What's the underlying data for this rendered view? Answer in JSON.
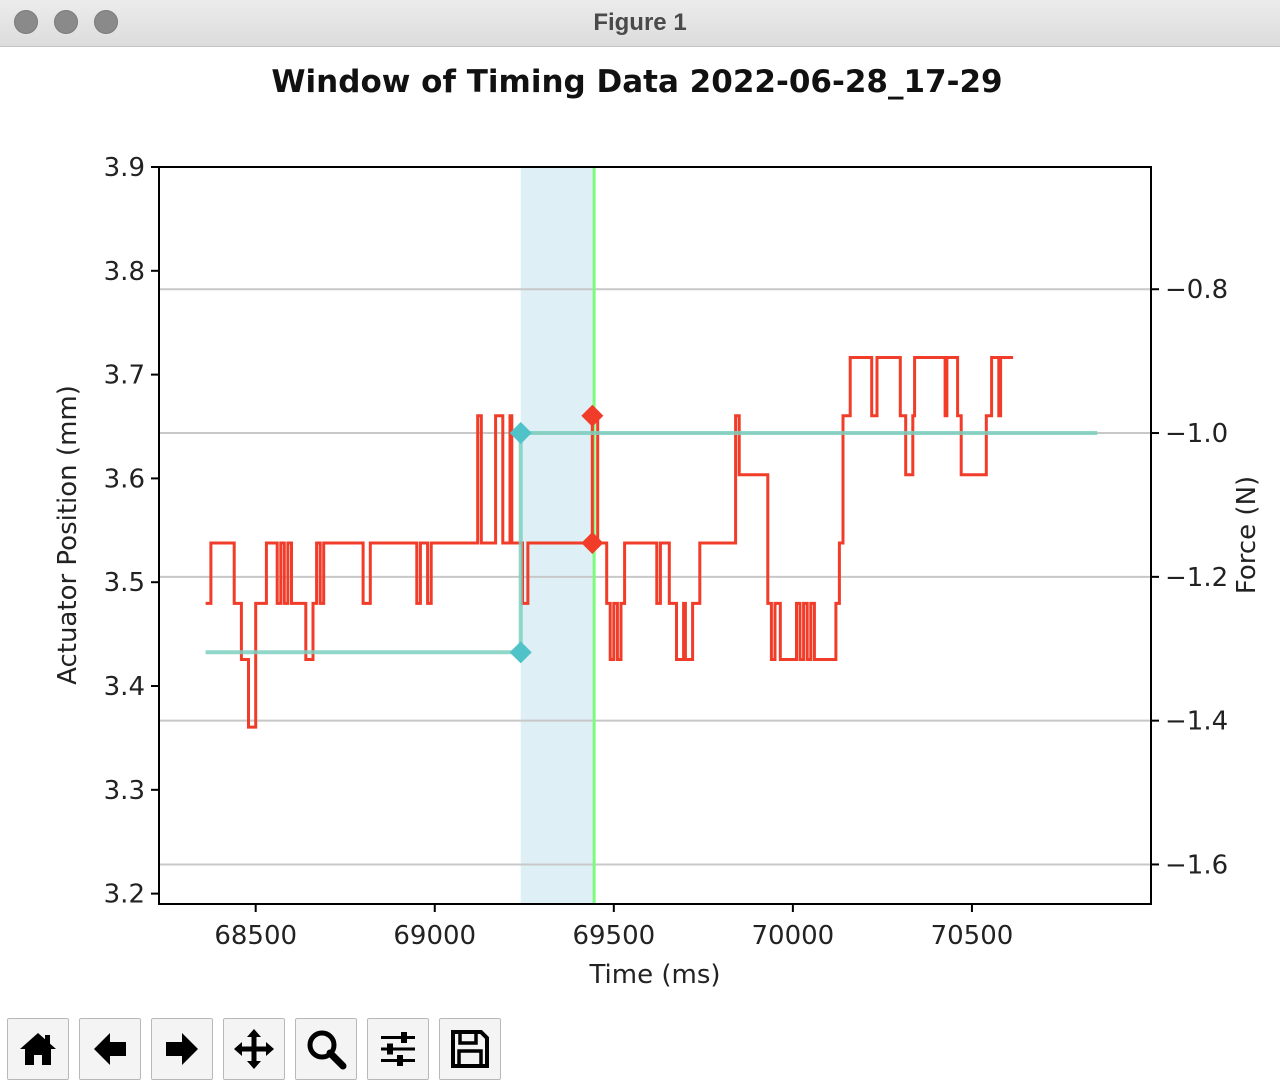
{
  "window": {
    "title": "Figure 1"
  },
  "toolbar": {
    "buttons": [
      {
        "name": "home-button",
        "icon": "home-icon"
      },
      {
        "name": "back-button",
        "icon": "arrow-left-icon"
      },
      {
        "name": "forward-button",
        "icon": "arrow-right-icon"
      },
      {
        "name": "pan-button",
        "icon": "move-icon"
      },
      {
        "name": "zoom-button",
        "icon": "magnifier-icon"
      },
      {
        "name": "configure-subplots-button",
        "icon": "sliders-icon"
      },
      {
        "name": "save-button",
        "icon": "floppy-disk-icon"
      }
    ]
  },
  "chart_data": {
    "type": "line",
    "title": "Window of Timing Data 2022-06-28_17-29",
    "xlabel": "Time (ms)",
    "ylabel": "Actuator Position (mm)",
    "y2label": "Force (N)",
    "xlim": [
      68230,
      71000
    ],
    "ylim": [
      3.19,
      3.9
    ],
    "y2lim": [
      -1.655,
      -0.63
    ],
    "xticks": [
      68500,
      69000,
      69500,
      70000,
      70500
    ],
    "xtick_labels": [
      "68500",
      "69000",
      "69500",
      "70000",
      "70500"
    ],
    "yticks": [
      3.2,
      3.3,
      3.4,
      3.5,
      3.6,
      3.7,
      3.8,
      3.9
    ],
    "ytick_labels": [
      "3.2",
      "3.3",
      "3.4",
      "3.5",
      "3.6",
      "3.7",
      "3.8",
      "3.9"
    ],
    "y2ticks": [
      -1.6,
      -1.4,
      -1.2,
      -1.0,
      -0.8
    ],
    "y2tick_labels": [
      "−1.6",
      "−1.4",
      "−1.2",
      "−1.0",
      "−0.8"
    ],
    "grid": "horizontal on secondary axis",
    "shaded_region": {
      "x": [
        69240,
        69445
      ],
      "color": "#add8e6"
    },
    "vertical_line": {
      "x": 69445,
      "color": "#7cfc7c"
    },
    "series": [
      {
        "axis": "y2",
        "color": "#f03c28",
        "points": [
          [
            68360,
            -1.237
          ],
          [
            68375,
            -1.237
          ],
          [
            68375,
            -1.153
          ],
          [
            68405,
            -1.153
          ],
          [
            68405,
            -1.153
          ],
          [
            68410,
            -1.153
          ],
          [
            68410,
            -1.153
          ],
          [
            68415,
            -1.153
          ],
          [
            68415,
            -1.153
          ],
          [
            68420,
            -1.153
          ],
          [
            68420,
            -1.153
          ],
          [
            68430,
            -1.153
          ],
          [
            68440,
            -1.153
          ],
          [
            68440,
            -1.237
          ],
          [
            68450,
            -1.237
          ],
          [
            68460,
            -1.237
          ],
          [
            68460,
            -1.315
          ],
          [
            68470,
            -1.315
          ],
          [
            68480,
            -1.315
          ],
          [
            68480,
            -1.409
          ],
          [
            68500,
            -1.409
          ],
          [
            68500,
            -1.237
          ],
          [
            68510,
            -1.237
          ],
          [
            68530,
            -1.237
          ],
          [
            68530,
            -1.153
          ],
          [
            68545,
            -1.153
          ],
          [
            68560,
            -1.153
          ],
          [
            68560,
            -1.237
          ],
          [
            68570,
            -1.237
          ],
          [
            68570,
            -1.153
          ],
          [
            68580,
            -1.153
          ],
          [
            68580,
            -1.237
          ],
          [
            68590,
            -1.237
          ],
          [
            68590,
            -1.153
          ],
          [
            68600,
            -1.153
          ],
          [
            68600,
            -1.237
          ],
          [
            68640,
            -1.237
          ],
          [
            68640,
            -1.315
          ],
          [
            68660,
            -1.315
          ],
          [
            68660,
            -1.237
          ],
          [
            68670,
            -1.237
          ],
          [
            68670,
            -1.153
          ],
          [
            68680,
            -1.153
          ],
          [
            68680,
            -1.237
          ],
          [
            68690,
            -1.237
          ],
          [
            68690,
            -1.153
          ],
          [
            68800,
            -1.153
          ],
          [
            68800,
            -1.237
          ],
          [
            68820,
            -1.237
          ],
          [
            68820,
            -1.153
          ],
          [
            68950,
            -1.153
          ],
          [
            68950,
            -1.237
          ],
          [
            68960,
            -1.237
          ],
          [
            68960,
            -1.153
          ],
          [
            68980,
            -1.153
          ],
          [
            68980,
            -1.237
          ],
          [
            68990,
            -1.237
          ],
          [
            68990,
            -1.153
          ],
          [
            69120,
            -1.153
          ],
          [
            69120,
            -0.976
          ],
          [
            69130,
            -0.976
          ],
          [
            69130,
            -1.153
          ],
          [
            69150,
            -1.153
          ],
          [
            69150,
            -1.153
          ],
          [
            69160,
            -1.153
          ],
          [
            69170,
            -1.153
          ],
          [
            69170,
            -0.976
          ],
          [
            69190,
            -0.976
          ],
          [
            69190,
            -1.153
          ],
          [
            69200,
            -1.153
          ],
          [
            69200,
            -1.153
          ],
          [
            69210,
            -1.153
          ],
          [
            69210,
            -0.976
          ],
          [
            69215,
            -0.976
          ],
          [
            69215,
            -1.153
          ],
          [
            69225,
            -1.153
          ],
          [
            69225,
            -1.153
          ],
          [
            69235,
            -1.153
          ],
          [
            69245,
            -1.153
          ],
          [
            69245,
            -1.237
          ],
          [
            69250,
            -1.237
          ],
          [
            69260,
            -1.237
          ],
          [
            69260,
            -1.153
          ],
          [
            69280,
            -1.153
          ],
          [
            69440,
            -1.153
          ],
          [
            69440,
            -0.976
          ],
          [
            69450,
            -0.976
          ],
          [
            69455,
            -0.976
          ],
          [
            69455,
            -1.153
          ],
          [
            69480,
            -1.153
          ],
          [
            69480,
            -1.237
          ],
          [
            69490,
            -1.237
          ],
          [
            69490,
            -1.315
          ],
          [
            69500,
            -1.315
          ],
          [
            69500,
            -1.237
          ],
          [
            69510,
            -1.237
          ],
          [
            69510,
            -1.315
          ],
          [
            69520,
            -1.315
          ],
          [
            69520,
            -1.237
          ],
          [
            69530,
            -1.237
          ],
          [
            69530,
            -1.153
          ],
          [
            69620,
            -1.153
          ],
          [
            69620,
            -1.237
          ],
          [
            69630,
            -1.237
          ],
          [
            69630,
            -1.153
          ],
          [
            69655,
            -1.153
          ],
          [
            69655,
            -1.237
          ],
          [
            69675,
            -1.237
          ],
          [
            69675,
            -1.315
          ],
          [
            69695,
            -1.315
          ],
          [
            69695,
            -1.237
          ],
          [
            69700,
            -1.237
          ],
          [
            69700,
            -1.315
          ],
          [
            69720,
            -1.315
          ],
          [
            69720,
            -1.237
          ],
          [
            69730,
            -1.237
          ],
          [
            69730,
            -1.237
          ],
          [
            69740,
            -1.237
          ],
          [
            69740,
            -1.153
          ],
          [
            69840,
            -1.153
          ],
          [
            69840,
            -0.976
          ],
          [
            69850,
            -0.976
          ],
          [
            69850,
            -1.058
          ],
          [
            69890,
            -1.058
          ],
          [
            69930,
            -1.058
          ],
          [
            69930,
            -1.237
          ],
          [
            69940,
            -1.237
          ],
          [
            69940,
            -1.315
          ],
          [
            69950,
            -1.315
          ],
          [
            69950,
            -1.237
          ],
          [
            69965,
            -1.237
          ],
          [
            69965,
            -1.315
          ],
          [
            70010,
            -1.315
          ],
          [
            70010,
            -1.237
          ],
          [
            70020,
            -1.237
          ],
          [
            70020,
            -1.315
          ],
          [
            70030,
            -1.315
          ],
          [
            70030,
            -1.237
          ],
          [
            70040,
            -1.237
          ],
          [
            70040,
            -1.315
          ],
          [
            70050,
            -1.315
          ],
          [
            70050,
            -1.237
          ],
          [
            70060,
            -1.237
          ],
          [
            70060,
            -1.315
          ],
          [
            70120,
            -1.315
          ],
          [
            70120,
            -1.237
          ],
          [
            70130,
            -1.237
          ],
          [
            70130,
            -1.153
          ],
          [
            70140,
            -1.153
          ],
          [
            70140,
            -0.976
          ],
          [
            70160,
            -0.976
          ],
          [
            70160,
            -0.895
          ],
          [
            70220,
            -0.895
          ],
          [
            70220,
            -0.976
          ],
          [
            70235,
            -0.976
          ],
          [
            70235,
            -0.895
          ],
          [
            70300,
            -0.895
          ],
          [
            70300,
            -0.976
          ],
          [
            70310,
            -0.976
          ],
          [
            70310,
            -0.976
          ],
          [
            70315,
            -0.976
          ],
          [
            70315,
            -1.058
          ],
          [
            70335,
            -1.058
          ],
          [
            70335,
            -0.976
          ],
          [
            70340,
            -0.976
          ],
          [
            70340,
            -0.895
          ],
          [
            70425,
            -0.895
          ],
          [
            70425,
            -0.976
          ],
          [
            70430,
            -0.976
          ],
          [
            70430,
            -0.895
          ],
          [
            70460,
            -0.895
          ],
          [
            70460,
            -0.976
          ],
          [
            70470,
            -0.976
          ],
          [
            70470,
            -1.058
          ],
          [
            70510,
            -1.058
          ],
          [
            70510,
            -1.058
          ],
          [
            70540,
            -1.058
          ],
          [
            70540,
            -0.976
          ],
          [
            70555,
            -0.976
          ],
          [
            70555,
            -0.895
          ],
          [
            70575,
            -0.895
          ],
          [
            70575,
            -0.976
          ],
          [
            70580,
            -0.976
          ],
          [
            70580,
            -0.895
          ],
          [
            70615,
            -0.895
          ]
        ]
      },
      {
        "axis": "y2",
        "color": "#7ccfc0",
        "points": [
          [
            68360,
            -1.305
          ],
          [
            69240,
            -1.305
          ],
          [
            69240,
            -1.0
          ],
          [
            69440,
            -1.0
          ],
          [
            70850,
            -1.0
          ]
        ]
      }
    ],
    "markers": [
      {
        "axis": "y2",
        "x": 69240,
        "y": -1.305,
        "color": "#4fc3c7"
      },
      {
        "axis": "y2",
        "x": 69240,
        "y": -1.0,
        "color": "#4fc3c7"
      },
      {
        "axis": "y2",
        "x": 69440,
        "y": -0.976,
        "color": "#f03c28"
      },
      {
        "axis": "y2",
        "x": 69440,
        "y": -1.153,
        "color": "#f03c28"
      }
    ]
  }
}
